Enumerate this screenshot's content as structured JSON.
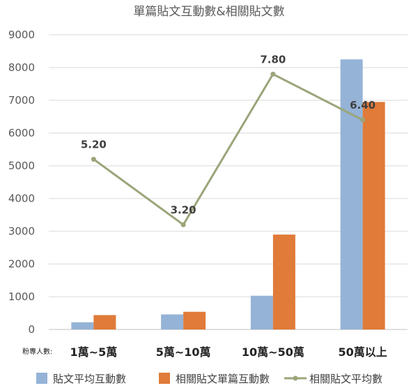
{
  "chart_data": {
    "type": "bar",
    "title": "單篇貼文互動數&相關貼文數",
    "category_prefix": "粉專人數:",
    "categories": [
      "1萬~5萬",
      "5萬~10萬",
      "10萬~50萬",
      "50萬以上"
    ],
    "ylim": [
      0,
      9000
    ],
    "yticks": [
      0,
      1000,
      2000,
      3000,
      4000,
      5000,
      6000,
      7000,
      8000,
      9000
    ],
    "grid": true,
    "legend_position": "bottom",
    "series": [
      {
        "name": "貼文平均互動數",
        "kind": "bar",
        "color": "#95b3d7",
        "values": [
          220,
          460,
          1030,
          8250
        ]
      },
      {
        "name": "相關貼文單篇互動數",
        "kind": "bar",
        "color": "#e07b39",
        "values": [
          440,
          540,
          2900,
          6950
        ]
      },
      {
        "name": "相關貼文平均數",
        "kind": "line",
        "color": "#9aa57a",
        "values": [
          5.2,
          3.2,
          7.8,
          6.4
        ],
        "labels": [
          "5.20",
          "3.20",
          "7.80",
          "6.40"
        ],
        "line_scale": 1000
      }
    ]
  }
}
